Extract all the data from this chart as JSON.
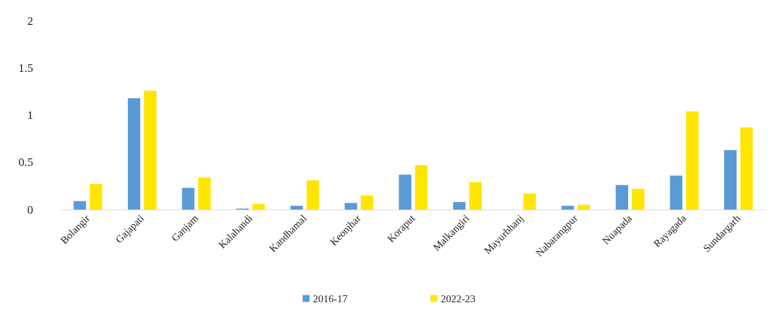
{
  "chart_data": {
    "type": "bar",
    "categories": [
      "Bolangir",
      "Gajapati",
      "Ganjam",
      "Kalahandi",
      "Kandhamal",
      "Keonjhar",
      "Koraput",
      "Malkangiri",
      "Mayurbhanj",
      "Nabarangpur",
      "Nuapada",
      "Rayagada",
      "Sundargarh"
    ],
    "series": [
      {
        "name": "2016-17",
        "color": "#5b9bd5",
        "values": [
          0.09,
          1.18,
          0.23,
          0.01,
          0.04,
          0.07,
          0.37,
          0.08,
          0,
          0.04,
          0.26,
          0.36,
          0.63
        ]
      },
      {
        "name": "2022-23",
        "color": "#ffe600",
        "values": [
          0.27,
          1.26,
          0.34,
          0.06,
          0.31,
          0.15,
          0.47,
          0.29,
          0.17,
          0.05,
          0.22,
          1.04,
          0.87
        ]
      }
    ],
    "ylim": [
      0,
      2
    ],
    "yticks": [
      0,
      0.5,
      1,
      1.5,
      2
    ],
    "grid": false,
    "legend": "bottom"
  }
}
